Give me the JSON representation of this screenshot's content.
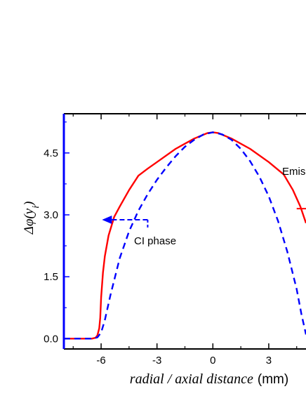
{
  "chart_data": {
    "type": "line",
    "xlabel": {
      "italic": "radial / axial distance",
      "unit": "(mm)"
    },
    "ylabel": "Δφ(y_i)",
    "ylabel_parts": {
      "main": "Δφ(y",
      "sub": "i",
      "close": ")"
    },
    "xlim": [
      -8.0,
      5.0
    ],
    "ylim": [
      -0.25,
      5.45
    ],
    "xticks": [
      -6,
      -3,
      0,
      3
    ],
    "xtick_labels": [
      "-6",
      "-3",
      "0",
      "3"
    ],
    "yticks": [
      0.0,
      1.5,
      3.0,
      4.5
    ],
    "ytick_labels": [
      "0.0",
      "1.5",
      "3.0",
      "4.5"
    ],
    "grid": false,
    "colors": {
      "emission": "#ff0000",
      "ci_phase": "#0000ff",
      "left_axis": "#0000ff",
      "right_axis": "#ff0000"
    },
    "series": [
      {
        "name": "Emission",
        "style": "solid",
        "color": "#ff0000",
        "x": [
          -8.0,
          -6.5,
          -6.3,
          -6.2,
          -6.1,
          -6.05,
          -6.0,
          -5.9,
          -5.8,
          -5.6,
          -5.3,
          -5.0,
          -4.5,
          -4.0,
          -3.5,
          -3.0,
          -2.0,
          -1.0,
          -0.3,
          0.0,
          0.3,
          1.0,
          2.0,
          3.0,
          3.8,
          4.3,
          4.7,
          5.0
        ],
        "y": [
          0.0,
          0.0,
          0.02,
          0.08,
          0.25,
          0.5,
          1.0,
          1.6,
          2.0,
          2.5,
          2.95,
          3.2,
          3.6,
          3.95,
          4.12,
          4.28,
          4.6,
          4.85,
          4.98,
          5.0,
          4.98,
          4.85,
          4.6,
          4.28,
          3.98,
          3.6,
          3.2,
          2.8
        ]
      },
      {
        "name": "CI phase",
        "style": "dashed",
        "color": "#0000ff",
        "x": [
          -8.0,
          -6.5,
          -6.2,
          -6.0,
          -5.8,
          -5.5,
          -5.0,
          -4.5,
          -4.0,
          -3.5,
          -3.0,
          -2.5,
          -2.0,
          -1.5,
          -1.0,
          -0.5,
          0.0,
          0.5,
          1.0,
          1.5,
          2.0,
          2.5,
          3.0,
          3.5,
          4.0,
          4.5,
          4.75,
          5.0
        ],
        "y": [
          0.0,
          0.0,
          0.03,
          0.15,
          0.45,
          1.05,
          1.95,
          2.6,
          3.1,
          3.5,
          3.85,
          4.15,
          4.42,
          4.65,
          4.82,
          4.95,
          5.0,
          4.95,
          4.82,
          4.6,
          4.3,
          3.92,
          3.45,
          2.85,
          2.1,
          1.2,
          0.6,
          0.1
        ]
      }
    ],
    "annotations": [
      {
        "text": "CI phase",
        "x": -4.0,
        "y": 2.4,
        "arrow_from": [
          -3.5,
          2.88
        ],
        "arrow_to": [
          -5.8,
          2.88
        ],
        "arrow_color": "#0000ff",
        "arrow_style": "dashed"
      },
      {
        "text": "Emis",
        "x": 3.9,
        "y": 4.15,
        "arrow_from": [
          4.5,
          3.15
        ],
        "arrow_to": [
          5.0,
          3.15
        ],
        "arrow_color": "#ff0000",
        "arrow_style": "solid"
      }
    ]
  }
}
